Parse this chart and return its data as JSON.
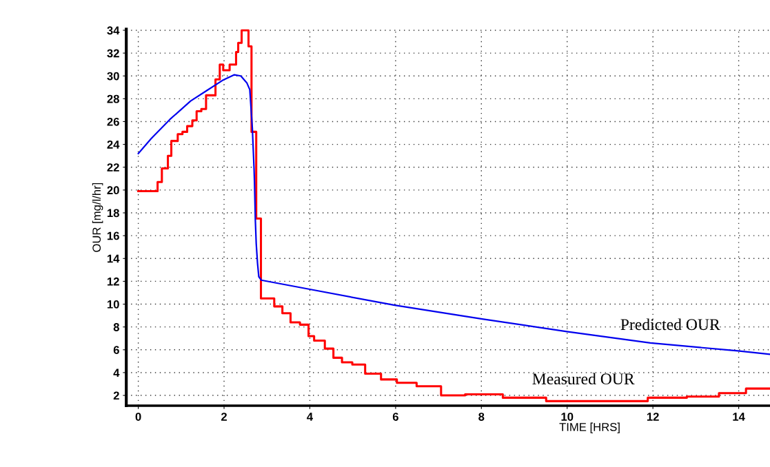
{
  "chart_data": {
    "type": "line",
    "xlabel": "TIME [HRS]",
    "ylabel": "OUR [mg/l/hr]",
    "xlim": [
      -0.28,
      14.73
    ],
    "ylim": [
      1.1,
      34.1
    ],
    "xticks": [
      0,
      2,
      4,
      6,
      8,
      10,
      12,
      14
    ],
    "yticks": [
      2,
      4,
      6,
      8,
      10,
      12,
      14,
      16,
      18,
      20,
      22,
      24,
      26,
      28,
      30,
      32,
      34
    ],
    "grid": true,
    "marker": "none",
    "line_style": "solid",
    "series": [
      {
        "type": "line",
        "name": "Predicted OUR",
        "color": "#0000ee",
        "x": [
          0,
          0.3,
          0.74,
          1.22,
          1.59,
          1.96,
          2.24,
          2.39,
          2.53,
          2.6,
          2.66,
          2.68,
          2.7,
          2.71,
          2.73,
          2.75,
          2.78,
          2.81,
          2.87,
          4.0,
          5.98,
          8.02,
          9.99,
          11.94,
          13.98,
          14.73
        ],
        "values": [
          23.2,
          24.5,
          26.2,
          27.8,
          28.7,
          29.6,
          30.1,
          30.0,
          29.4,
          28.8,
          25.4,
          23.6,
          21.8,
          20.6,
          17.3,
          15.3,
          13.6,
          12.4,
          12.1,
          11.3,
          9.9,
          8.7,
          7.6,
          6.6,
          5.9,
          5.6
        ]
      },
      {
        "type": "step",
        "name": "Measured OUR",
        "color": "#ff0000",
        "x": [
          0,
          0.45,
          0.55,
          0.69,
          0.77,
          0.92,
          1.03,
          1.14,
          1.26,
          1.36,
          1.47,
          1.58,
          1.8,
          1.9,
          1.98,
          2.13,
          2.28,
          2.33,
          2.41,
          2.57,
          2.64,
          2.75,
          2.86,
          3.17,
          3.36,
          3.55,
          3.77,
          3.97,
          4.1,
          4.35,
          4.55,
          4.75,
          4.99,
          5.29,
          5.66,
          6.03,
          6.49,
          7.06,
          7.62,
          8.5,
          9.51,
          11.88,
          12.79,
          13.54,
          14.17,
          14.73
        ],
        "values": [
          19.9,
          20.7,
          21.9,
          23.0,
          24.3,
          24.9,
          25.1,
          25.6,
          26.1,
          26.9,
          27.1,
          28.3,
          29.7,
          31.0,
          30.5,
          31.0,
          32.1,
          32.9,
          34.0,
          32.6,
          25.1,
          17.5,
          10.5,
          9.8,
          9.2,
          8.4,
          8.2,
          7.2,
          6.8,
          6.1,
          5.3,
          4.9,
          4.7,
          3.9,
          3.4,
          3.1,
          2.8,
          2.0,
          2.1,
          1.8,
          1.5,
          1.8,
          1.9,
          2.2,
          2.6,
          2.6
        ]
      }
    ]
  }
}
